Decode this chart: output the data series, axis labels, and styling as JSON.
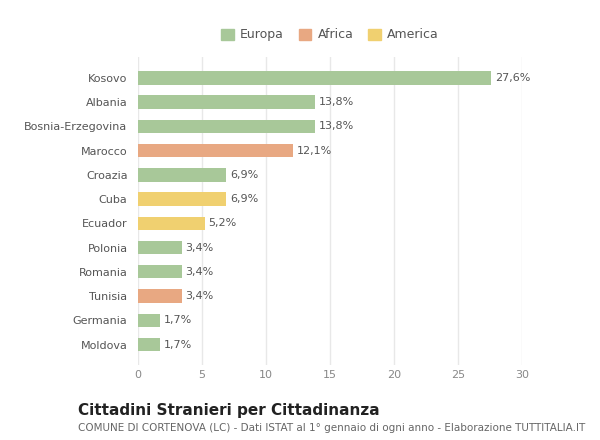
{
  "categories": [
    "Kosovo",
    "Albania",
    "Bosnia-Erzegovina",
    "Marocco",
    "Croazia",
    "Cuba",
    "Ecuador",
    "Polonia",
    "Romania",
    "Tunisia",
    "Germania",
    "Moldova"
  ],
  "values": [
    27.6,
    13.8,
    13.8,
    12.1,
    6.9,
    6.9,
    5.2,
    3.4,
    3.4,
    3.4,
    1.7,
    1.7
  ],
  "labels": [
    "27,6%",
    "13,8%",
    "13,8%",
    "12,1%",
    "6,9%",
    "6,9%",
    "5,2%",
    "3,4%",
    "3,4%",
    "3,4%",
    "1,7%",
    "1,7%"
  ],
  "continents": [
    "Europa",
    "Europa",
    "Europa",
    "Africa",
    "Europa",
    "America",
    "America",
    "Europa",
    "Europa",
    "Africa",
    "Europa",
    "Europa"
  ],
  "colors": {
    "Europa": "#a8c899",
    "Africa": "#e8a882",
    "America": "#f0d070"
  },
  "legend_labels": [
    "Europa",
    "Africa",
    "America"
  ],
  "legend_colors": [
    "#a8c899",
    "#e8a882",
    "#f0d070"
  ],
  "xlim": [
    0,
    30
  ],
  "xticks": [
    0,
    5,
    10,
    15,
    20,
    25,
    30
  ],
  "title": "Cittadini Stranieri per Cittadinanza",
  "subtitle": "COMUNE DI CORTENOVA (LC) - Dati ISTAT al 1° gennaio di ogni anno - Elaborazione TUTTITALIA.IT",
  "background_color": "#ffffff",
  "grid_color": "#e8e8e8",
  "bar_height": 0.55,
  "title_fontsize": 11,
  "subtitle_fontsize": 7.5,
  "label_fontsize": 8,
  "tick_fontsize": 8,
  "legend_fontsize": 9
}
